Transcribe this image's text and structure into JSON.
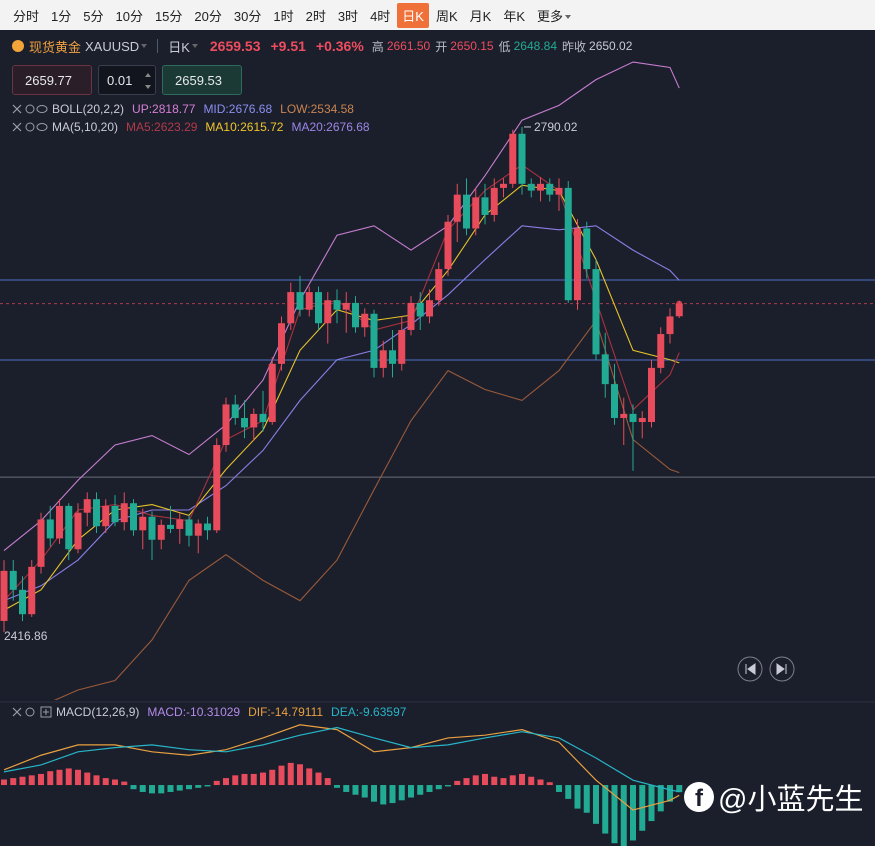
{
  "toolbar": {
    "tabs": [
      "分时",
      "1分",
      "5分",
      "10分",
      "15分",
      "20分",
      "30分",
      "1时",
      "2时",
      "3时",
      "4时",
      "日K",
      "周K",
      "月K",
      "年K",
      "更多"
    ],
    "active": 11
  },
  "symbol": {
    "name": "现货黄金",
    "code": "XAUUSD",
    "period": "日K",
    "price": "2659.53",
    "change": "+9.51",
    "change_pct": "+0.36%",
    "high_label": "高",
    "high": "2661.50",
    "open_label": "开",
    "open": "2650.15",
    "low_label": "低",
    "low": "2648.84",
    "prev_label": "昨收",
    "prev": "2650.02"
  },
  "order": {
    "bid": "2659.77",
    "lot": "0.01",
    "ask": "2659.53"
  },
  "indicators": [
    {
      "name": "BOLL(20,2,2)",
      "items": [
        {
          "text": "UP:2818.77",
          "color": "#d77fd6"
        },
        {
          "text": "MID:2676.68",
          "color": "#8b8ff0"
        },
        {
          "text": "LOW:2534.58",
          "color": "#c98452"
        }
      ]
    },
    {
      "name": "MA(5,10,20)",
      "items": [
        {
          "text": "MA5:2623.29",
          "color": "#b3394a"
        },
        {
          "text": "MA10:2615.72",
          "color": "#f1c52a"
        },
        {
          "text": "MA20:2676.68",
          "color": "#9d86e6"
        }
      ]
    }
  ],
  "chart": {
    "type": "candlestick",
    "up_color": "#e84b5b",
    "down_color": "#22ab94",
    "ylim": [
      2366.6,
      2839.5
    ],
    "candles": [
      [
        2425,
        2470,
        2416.86,
        2462
      ],
      [
        2462,
        2470,
        2440,
        2448
      ],
      [
        2448,
        2458,
        2425,
        2430
      ],
      [
        2430,
        2470,
        2428,
        2465
      ],
      [
        2465,
        2505,
        2460,
        2500
      ],
      [
        2500,
        2510,
        2480,
        2486
      ],
      [
        2486,
        2515,
        2482,
        2510
      ],
      [
        2510,
        2512,
        2470,
        2478
      ],
      [
        2478,
        2512,
        2475,
        2505
      ],
      [
        2505,
        2520,
        2495,
        2515
      ],
      [
        2515,
        2520,
        2490,
        2495
      ],
      [
        2495,
        2515,
        2490,
        2510
      ],
      [
        2510,
        2518,
        2495,
        2498
      ],
      [
        2498,
        2520,
        2492,
        2512
      ],
      [
        2512,
        2515,
        2488,
        2492
      ],
      [
        2492,
        2508,
        2478,
        2502
      ],
      [
        2502,
        2506,
        2470,
        2485
      ],
      [
        2485,
        2500,
        2478,
        2496
      ],
      [
        2496,
        2510,
        2490,
        2493
      ],
      [
        2493,
        2505,
        2482,
        2500
      ],
      [
        2500,
        2503,
        2480,
        2488
      ],
      [
        2488,
        2500,
        2475,
        2497
      ],
      [
        2497,
        2502,
        2485,
        2492
      ],
      [
        2492,
        2560,
        2490,
        2555
      ],
      [
        2555,
        2590,
        2550,
        2585
      ],
      [
        2585,
        2592,
        2570,
        2575
      ],
      [
        2575,
        2588,
        2560,
        2568
      ],
      [
        2568,
        2582,
        2558,
        2578
      ],
      [
        2578,
        2595,
        2565,
        2572
      ],
      [
        2572,
        2620,
        2570,
        2615
      ],
      [
        2615,
        2650,
        2610,
        2645
      ],
      [
        2645,
        2675,
        2640,
        2668
      ],
      [
        2668,
        2680,
        2650,
        2655
      ],
      [
        2655,
        2672,
        2650,
        2668
      ],
      [
        2668,
        2672,
        2640,
        2645
      ],
      [
        2645,
        2668,
        2630,
        2662
      ],
      [
        2662,
        2670,
        2645,
        2655
      ],
      [
        2655,
        2668,
        2638,
        2660
      ],
      [
        2660,
        2665,
        2638,
        2642
      ],
      [
        2642,
        2656,
        2635,
        2652
      ],
      [
        2652,
        2655,
        2605,
        2612
      ],
      [
        2612,
        2632,
        2605,
        2625
      ],
      [
        2625,
        2640,
        2605,
        2615
      ],
      [
        2615,
        2650,
        2610,
        2640
      ],
      [
        2640,
        2665,
        2636,
        2660
      ],
      [
        2660,
        2668,
        2640,
        2650
      ],
      [
        2650,
        2670,
        2645,
        2662
      ],
      [
        2662,
        2690,
        2658,
        2685
      ],
      [
        2685,
        2725,
        2680,
        2720
      ],
      [
        2720,
        2748,
        2705,
        2740
      ],
      [
        2740,
        2752,
        2710,
        2715
      ],
      [
        2715,
        2745,
        2710,
        2738
      ],
      [
        2738,
        2748,
        2718,
        2725
      ],
      [
        2725,
        2752,
        2720,
        2745
      ],
      [
        2745,
        2752,
        2738,
        2748
      ],
      [
        2748,
        2788,
        2745,
        2785
      ],
      [
        2785,
        2790.02,
        2740,
        2748
      ],
      [
        2748,
        2752,
        2738,
        2743
      ],
      [
        2743,
        2753,
        2735,
        2748
      ],
      [
        2748,
        2752,
        2735,
        2740
      ],
      [
        2740,
        2752,
        2728,
        2745
      ],
      [
        2745,
        2750,
        2660,
        2662
      ],
      [
        2662,
        2722,
        2655,
        2715
      ],
      [
        2715,
        2720,
        2678,
        2685
      ],
      [
        2685,
        2692,
        2618,
        2622
      ],
      [
        2622,
        2638,
        2590,
        2600
      ],
      [
        2600,
        2615,
        2570,
        2575
      ],
      [
        2575,
        2590,
        2555,
        2578
      ],
      [
        2578,
        2585,
        2536,
        2572
      ],
      [
        2572,
        2580,
        2560,
        2575
      ],
      [
        2572,
        2618,
        2568,
        2612
      ],
      [
        2612,
        2642,
        2608,
        2637
      ],
      [
        2637,
        2656,
        2630,
        2650.02
      ],
      [
        2650.15,
        2661.5,
        2648.84,
        2659.53
      ]
    ],
    "levels": [
      {
        "value": 2676.9,
        "color": "#4f6fc4"
      },
      {
        "value": 2617.8,
        "color": "#4f6fc4"
      },
      {
        "value": 2531.3,
        "color": "#6b6e78"
      }
    ],
    "current_color": "#a83c4c",
    "lines": {
      "x": [
        0,
        4,
        8,
        12,
        16,
        20,
        24,
        28,
        32,
        36,
        40,
        44,
        48,
        52,
        56,
        60,
        64,
        68,
        72,
        73
      ],
      "series": [
        {
          "color": "#c77dd0",
          "values": [
            2477,
            2499,
            2529,
            2555,
            2562,
            2548,
            2570,
            2603,
            2662,
            2710,
            2717,
            2699,
            2717,
            2754,
            2795,
            2806,
            2825,
            2838,
            2834,
            2818.77
          ]
        },
        {
          "color": "#9a5a3a",
          "values": [
            2350,
            2362,
            2374,
            2381,
            2411,
            2455,
            2474,
            2455,
            2440,
            2470,
            2522,
            2573,
            2610,
            2596,
            2588,
            2610,
            2647,
            2559,
            2537,
            2534.58
          ]
        },
        {
          "color": "#8c7ee6",
          "values": [
            2440,
            2451,
            2470,
            2499,
            2507,
            2507,
            2525,
            2551,
            2588,
            2618,
            2625,
            2644,
            2666,
            2692,
            2717,
            2714,
            2717,
            2699,
            2684,
            2676.68
          ]
        },
        {
          "color": "#e6c229",
          "values": [
            2433,
            2448,
            2485,
            2507,
            2511,
            2503,
            2537,
            2566,
            2625,
            2655,
            2647,
            2651,
            2684,
            2725,
            2747,
            2743,
            2692,
            2625,
            2618,
            2615.72
          ]
        },
        {
          "color": "#a8323e",
          "values": [
            2440,
            2470,
            2507,
            2511,
            2503,
            2499,
            2559,
            2573,
            2655,
            2662,
            2640,
            2647,
            2714,
            2743,
            2762,
            2743,
            2662,
            2581,
            2607,
            2623.29
          ]
        }
      ]
    }
  },
  "macd": {
    "type": "macd",
    "name": "MACD(12,26,9)",
    "items": [
      {
        "text": "MACD:-10.31029",
        "color": "#b38ae8"
      },
      {
        "text": "DIF:-14.79111",
        "color": "#e8a040"
      },
      {
        "text": "DEA:-9.63597",
        "color": "#27b5c8"
      }
    ],
    "ylim": [
      -88,
      91
    ],
    "up_color": "#e84b5b",
    "down_color": "#22ab94",
    "histogram": [
      8,
      10,
      12,
      14,
      16,
      20,
      22,
      24,
      22,
      18,
      14,
      10,
      8,
      5,
      -6,
      -10,
      -12,
      -12,
      -10,
      -8,
      -6,
      -4,
      -2,
      6,
      10,
      14,
      16,
      16,
      18,
      22,
      28,
      32,
      30,
      24,
      18,
      10,
      -4,
      -10,
      -14,
      -18,
      -24,
      -28,
      -26,
      -22,
      -18,
      -14,
      -10,
      -6,
      -2,
      6,
      10,
      14,
      16,
      12,
      10,
      14,
      16,
      12,
      8,
      4,
      -10,
      -20,
      -34,
      -40,
      -56,
      -70,
      -84,
      -88,
      -80,
      -66,
      -52,
      -38,
      -24,
      -10.31
    ],
    "x": [
      0,
      4,
      8,
      12,
      16,
      20,
      24,
      28,
      32,
      36,
      40,
      44,
      48,
      52,
      56,
      60,
      64,
      68,
      72,
      73
    ],
    "series": [
      {
        "color": "#e8a040",
        "values": [
          22,
          43,
          58,
          58,
          48,
          43,
          51,
          68,
          87,
          80,
          48,
          54,
          68,
          72,
          80,
          62,
          7,
          -36,
          -22,
          -14.79
        ]
      },
      {
        "color": "#27b5c8",
        "values": [
          19,
          29,
          48,
          54,
          58,
          51,
          48,
          58,
          72,
          83,
          68,
          54,
          58,
          68,
          77,
          68,
          39,
          7,
          -7,
          -9.64
        ]
      }
    ]
  },
  "watermark": "@小蓝先生"
}
